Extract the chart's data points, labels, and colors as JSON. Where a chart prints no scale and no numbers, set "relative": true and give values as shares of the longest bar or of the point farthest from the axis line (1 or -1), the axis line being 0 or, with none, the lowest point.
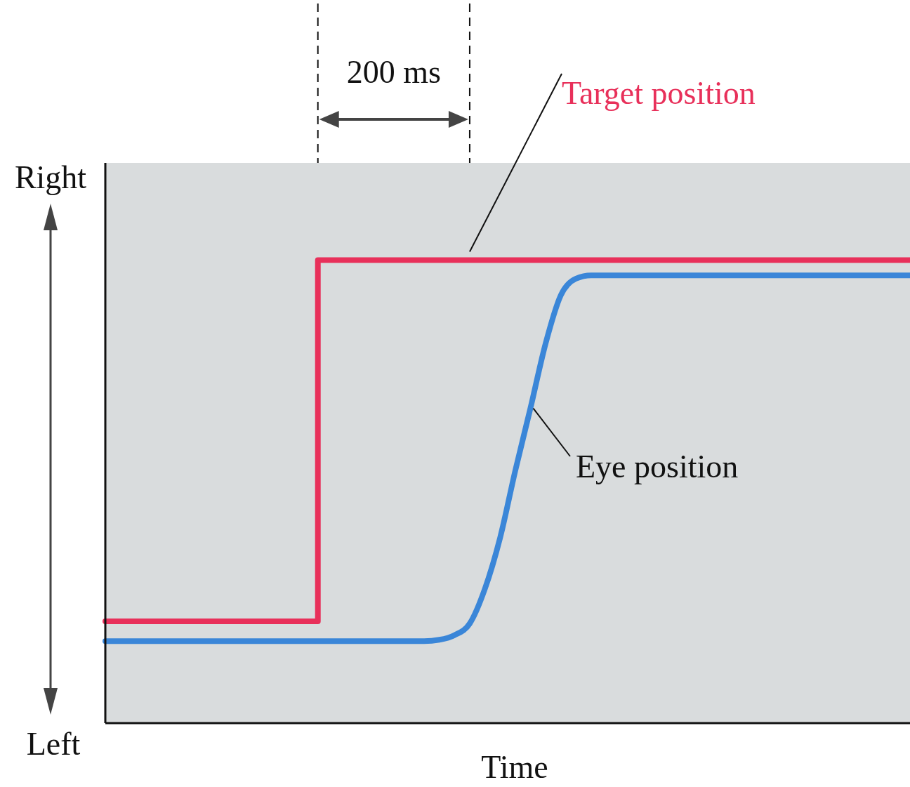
{
  "chart_data": {
    "type": "line",
    "relative": true,
    "xlabel": "Time",
    "categories": [
      null,
      null,
      null,
      null,
      null,
      null,
      null,
      null,
      null,
      null,
      null,
      null,
      null,
      null,
      null,
      null,
      null,
      null,
      null,
      null,
      null,
      null,
      null,
      null,
      null,
      null,
      null,
      null,
      null,
      null,
      null,
      null,
      null,
      null,
      null,
      null,
      null,
      null,
      null,
      null,
      null,
      null,
      null,
      null,
      null,
      null,
      null,
      null,
      null,
      null,
      null,
      null,
      null,
      null
    ],
    "annotations": [
      "200 ms",
      "Right",
      "Left"
    ],
    "series": [
      {
        "name": "Target position",
        "type": "step",
        "color": "#e8305a",
        "values": [
          0.22,
          0.22,
          0.22,
          0.22,
          0.22,
          0.22,
          0.22,
          0.22,
          0.22,
          0.22,
          0.22,
          0.22,
          0.22,
          0.22,
          1,
          1,
          1,
          1,
          1,
          1,
          1,
          1,
          1,
          1,
          1,
          1,
          1,
          1,
          1,
          1,
          1,
          1,
          1,
          1,
          1,
          1,
          1,
          1,
          1,
          1,
          1,
          1,
          1,
          1,
          1,
          1,
          1,
          1,
          1,
          1,
          1,
          1,
          1,
          1
        ]
      },
      {
        "name": "Eye position",
        "type": "line",
        "color": "#3a86d8",
        "values": [
          0.177,
          0.177,
          0.177,
          0.177,
          0.177,
          0.177,
          0.177,
          0.177,
          0.177,
          0.177,
          0.177,
          0.177,
          0.177,
          0.177,
          0.177,
          0.177,
          0.177,
          0.177,
          0.177,
          0.177,
          0.177,
          0.177,
          0.18,
          0.19,
          0.215,
          0.29,
          0.4,
          0.545,
          0.68,
          0.82,
          0.924,
          0.96,
          0.967,
          0.967,
          0.967,
          0.967,
          0.967,
          0.967,
          0.967,
          0.967,
          0.967,
          0.967,
          0.967,
          0.967,
          0.967,
          0.967,
          0.967,
          0.967,
          0.967,
          0.967,
          0.967,
          0.967,
          0.967,
          0.967
        ]
      }
    ]
  }
}
